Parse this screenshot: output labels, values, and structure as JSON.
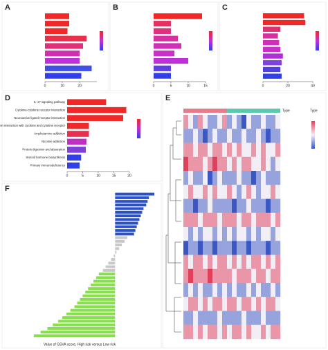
{
  "chart_data": [
    {
      "type": "bar",
      "panel": "A",
      "values": [
        14,
        14,
        13,
        24,
        22,
        20,
        20,
        27,
        21
      ],
      "colors": [
        "#f02828",
        "#f02828",
        "#f02828",
        "#e8304a",
        "#e03078",
        "#d030b0",
        "#c030d8",
        "#4050e0",
        "#3040e8"
      ],
      "xlim": [
        0,
        30
      ],
      "xticks": [
        0,
        10,
        20
      ]
    },
    {
      "type": "bar",
      "panel": "B",
      "values": [
        14,
        5,
        5,
        7,
        8,
        6,
        10,
        5,
        5
      ],
      "colors": [
        "#f02828",
        "#e83060",
        "#e03080",
        "#d830a0",
        "#d030b8",
        "#c830c8",
        "#c030d8",
        "#6040e0",
        "#3040e8"
      ],
      "xlim": [
        0,
        15
      ],
      "xticks": [
        0,
        5,
        10,
        15
      ]
    },
    {
      "type": "bar",
      "panel": "C",
      "values": [
        33,
        34,
        14,
        12,
        13,
        14,
        16,
        15,
        14,
        15
      ],
      "colors": [
        "#f02828",
        "#f02828",
        "#e03070",
        "#d830a0",
        "#d030b8",
        "#c830c8",
        "#b030d8",
        "#8040e0",
        "#5040e4",
        "#3040e8"
      ],
      "xlim": [
        0,
        40
      ],
      "xticks": [
        0,
        20,
        40
      ]
    },
    {
      "type": "bar",
      "panel": "D",
      "categories": [
        "IL-17 signaling pathway",
        "Cytokine-cytokine receptor interaction",
        "Neuroactive ligand-receptor interaction",
        "Viral protein interaction with cytokine and cytokine receptor",
        "Amphetamine addiction",
        "Nicotine addiction",
        "Protein digestion and absorption",
        "Steroid hormone biosynthesis",
        "Primary immunodeficiency"
      ],
      "values": [
        12.5,
        19,
        18,
        7,
        7,
        6.2,
        6,
        4.5,
        4
      ],
      "colors": [
        "#f02828",
        "#f02828",
        "#f02828",
        "#f02828",
        "#e83050",
        "#c030c0",
        "#8040d8",
        "#3040e8",
        "#3040e8"
      ],
      "xlim": [
        0,
        20
      ],
      "xticks": [
        0,
        5,
        10,
        15,
        20
      ]
    },
    {
      "type": "heatmap",
      "panel": "E",
      "annotation": "Type",
      "group_colors": [
        "#e87b8a",
        "#5cc8b0"
      ],
      "split": 9,
      "scale_colors": [
        "#3a57c4",
        "#f2eef6",
        "#e0405a"
      ],
      "zlim": [
        -2,
        2
      ],
      "values": [
        [
          1,
          0,
          -1,
          1,
          0,
          -1,
          -1,
          0,
          1,
          -1,
          0,
          -1,
          -2,
          0,
          -1,
          -1,
          0,
          -1,
          -1,
          0
        ],
        [
          -1,
          -1,
          0,
          -1,
          -2,
          -1,
          0,
          -1,
          -1,
          0,
          -1,
          -1,
          0,
          -1,
          -1,
          0,
          -1,
          -2,
          -1,
          -1
        ],
        [
          1,
          1,
          0,
          1,
          1,
          0,
          1,
          1,
          0,
          1,
          0,
          1,
          0,
          0,
          1,
          0,
          1,
          0,
          0,
          1
        ],
        [
          2,
          1,
          1,
          1,
          0,
          1,
          2,
          1,
          1,
          0,
          1,
          0,
          1,
          1,
          0,
          0,
          1,
          0,
          -1,
          0
        ],
        [
          -1,
          0,
          -1,
          -1,
          0,
          -2,
          -1,
          0,
          -1,
          -1,
          -1,
          0,
          -1,
          -1,
          -2,
          -1,
          0,
          -1,
          -1,
          -1
        ],
        [
          0,
          1,
          0,
          0,
          1,
          0,
          1,
          0,
          0,
          1,
          0,
          -1,
          0,
          1,
          0,
          -1,
          0,
          0,
          1,
          0
        ],
        [
          -1,
          -1,
          -2,
          -1,
          -1,
          0,
          -1,
          -1,
          -1,
          -1,
          -2,
          -1,
          -1,
          0,
          -1,
          -1,
          -1,
          -2,
          -1,
          -1
        ],
        [
          1,
          1,
          1,
          0,
          1,
          1,
          1,
          0,
          1,
          1,
          1,
          0,
          1,
          1,
          0,
          1,
          1,
          1,
          0,
          1
        ],
        [
          0,
          -1,
          0,
          -1,
          0,
          0,
          -1,
          0,
          -1,
          0,
          -1,
          0,
          0,
          -1,
          0,
          -1,
          0,
          0,
          -1,
          0
        ],
        [
          -2,
          -1,
          -1,
          -2,
          -1,
          -1,
          -2,
          -1,
          -1,
          -1,
          -2,
          -1,
          -1,
          -2,
          -1,
          -1,
          -1,
          -2,
          -1,
          -1
        ],
        [
          1,
          0,
          1,
          1,
          0,
          1,
          0,
          1,
          1,
          0,
          1,
          0,
          1,
          0,
          1,
          1,
          0,
          1,
          0,
          1
        ],
        [
          1,
          2,
          1,
          1,
          1,
          2,
          1,
          1,
          1,
          1,
          0,
          1,
          1,
          1,
          0,
          1,
          1,
          0,
          1,
          1
        ],
        [
          -1,
          0,
          -1,
          0,
          -1,
          -1,
          0,
          -1,
          0,
          -1,
          0,
          -1,
          -1,
          0,
          -1,
          0,
          -1,
          -1,
          0,
          -1
        ],
        [
          0,
          1,
          1,
          0,
          1,
          0,
          1,
          1,
          0,
          1,
          1,
          0,
          1,
          1,
          0,
          1,
          0,
          1,
          1,
          0
        ],
        [
          -1,
          -1,
          0,
          -1,
          -1,
          -1,
          -1,
          0,
          -1,
          -1,
          -1,
          -1,
          0,
          -1,
          -1,
          -1,
          0,
          -1,
          -1,
          -1
        ],
        [
          1,
          1,
          0,
          1,
          0,
          1,
          1,
          0,
          1,
          0,
          1,
          1,
          0,
          1,
          0,
          0,
          1,
          0,
          1,
          1
        ]
      ]
    },
    {
      "type": "bar",
      "panel": "F",
      "xlabel": "Value of GSVA score, High risk versus Low risk",
      "values": [
        2.9,
        2.5,
        2.4,
        2.3,
        2.1,
        2.0,
        1.9,
        1.8,
        1.7,
        1.6,
        1.5,
        1.4,
        0.9,
        0.7,
        0.5,
        0.3,
        0.1,
        -0.1,
        -0.3,
        -0.5,
        -0.7,
        -0.9,
        -1.2,
        -1.4,
        -1.6,
        -1.8,
        -2.0,
        -2.2,
        -2.4,
        -2.6,
        -2.8,
        -3.0,
        -3.3,
        -3.6,
        -3.9,
        -4.2,
        -4.6,
        -5.0,
        -5.5,
        -6.0
      ],
      "colors": [
        "#2a50c8",
        "#2a50c8",
        "#2a50c8",
        "#2a50c8",
        "#2a50c8",
        "#2a50c8",
        "#2a50c8",
        "#2a50c8",
        "#2a50c8",
        "#2a50c8",
        "#2a50c8",
        "#2a50c8",
        "#c8c8c8",
        "#c8c8c8",
        "#c8c8c8",
        "#c8c8c8",
        "#c8c8c8",
        "#c8c8c8",
        "#c8c8c8",
        "#c8c8c8",
        "#c8c8c8",
        "#c8c8c8",
        "#86e04a",
        "#86e04a",
        "#86e04a",
        "#86e04a",
        "#86e04a",
        "#86e04a",
        "#86e04a",
        "#86e04a",
        "#86e04a",
        "#86e04a",
        "#86e04a",
        "#86e04a",
        "#86e04a",
        "#86e04a",
        "#86e04a",
        "#86e04a",
        "#86e04a",
        "#86e04a"
      ],
      "xlim": [
        -6.2,
        3
      ]
    }
  ]
}
